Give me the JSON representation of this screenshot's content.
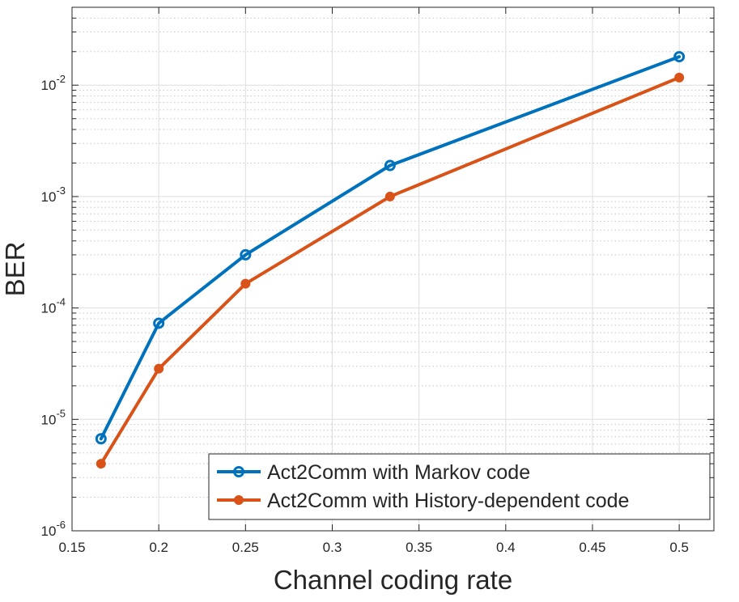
{
  "chart_data": {
    "type": "line",
    "title": "",
    "xlabel": "Channel coding rate",
    "ylabel": "BER",
    "yscale": "log",
    "xlim": [
      0.15,
      0.52
    ],
    "ylim": [
      1e-06,
      0.05
    ],
    "grid": true,
    "legend_position": "bottom-right",
    "x_ticks": [
      "0.15",
      "0.2",
      "0.25",
      "0.3",
      "0.35",
      "0.4",
      "0.45",
      "0.5"
    ],
    "y_ticks": [
      {
        "base": "10",
        "exp": "-6"
      },
      {
        "base": "10",
        "exp": "-5"
      },
      {
        "base": "10",
        "exp": "-4"
      },
      {
        "base": "10",
        "exp": "-3"
      },
      {
        "base": "10",
        "exp": "-2"
      }
    ],
    "series": [
      {
        "name": "Act2Comm with Markov code",
        "color": "#0072BD",
        "marker": "open-circle",
        "x": [
          0.1667,
          0.2,
          0.25,
          0.3333,
          0.5
        ],
        "values": [
          6.7e-06,
          7.3e-05,
          0.0003,
          0.0019,
          0.018
        ]
      },
      {
        "name": "Act2Comm with History-dependent code",
        "color": "#D95319",
        "marker": "filled-circle",
        "x": [
          0.1667,
          0.2,
          0.25,
          0.3333,
          0.5
        ],
        "values": [
          4e-06,
          2.85e-05,
          0.000165,
          0.001,
          0.0117
        ]
      }
    ]
  }
}
